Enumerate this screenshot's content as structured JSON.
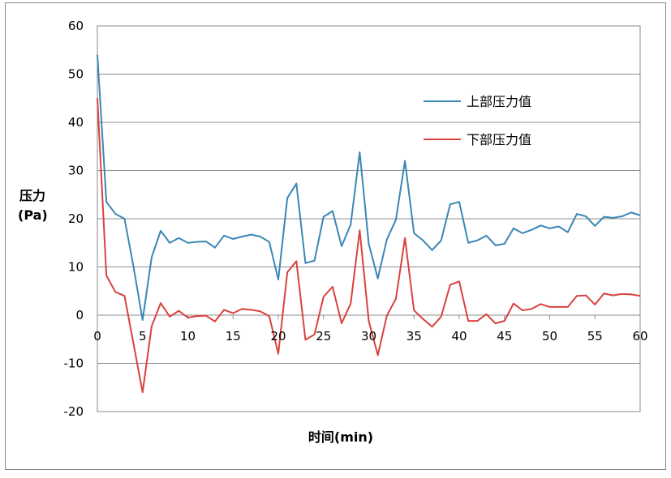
{
  "chart_data": {
    "type": "line",
    "xlabel": "时间(min)",
    "ylabel": "压力",
    "ylabel_unit": "(Pa)",
    "xlim": [
      0,
      60
    ],
    "ylim": [
      -20,
      60
    ],
    "x_ticks": [
      0,
      5,
      10,
      15,
      20,
      25,
      30,
      35,
      40,
      45,
      50,
      55,
      60
    ],
    "y_ticks": [
      -20,
      -10,
      0,
      10,
      20,
      30,
      40,
      50,
      60
    ],
    "grid": "horizontal",
    "legend_position": "right",
    "x": [
      0,
      1,
      2,
      3,
      4,
      5,
      6,
      7,
      8,
      9,
      10,
      11,
      12,
      13,
      14,
      15,
      16,
      17,
      18,
      19,
      20,
      21,
      22,
      23,
      24,
      25,
      26,
      27,
      28,
      29,
      30,
      31,
      32,
      33,
      34,
      35,
      36,
      37,
      38,
      39,
      40,
      41,
      42,
      43,
      44,
      45,
      46,
      47,
      48,
      49,
      50,
      51,
      52,
      53,
      54,
      55,
      56,
      57,
      58,
      59,
      60
    ],
    "series": [
      {
        "name": "上部压力值",
        "color": "#3a87b5",
        "values": [
          54,
          23.5,
          21,
          20,
          10,
          -1,
          12,
          17.5,
          15,
          16,
          15,
          15.2,
          15.3,
          14,
          16.5,
          15.8,
          16.3,
          16.7,
          16.3,
          15.2,
          7.4,
          24.3,
          27.3,
          10.8,
          11.3,
          20.4,
          21.6,
          14.3,
          18.8,
          33.8,
          14.8,
          7.6,
          15.7,
          19.8,
          32,
          17,
          15.5,
          13.5,
          15.5,
          23,
          23.5,
          15,
          15.5,
          16.5,
          14.5,
          14.8,
          18,
          17,
          17.7,
          18.6,
          18,
          18.4,
          17.2,
          21,
          20.5,
          18.5,
          20.4,
          20.2,
          20.5,
          21.3,
          20.7
        ]
      },
      {
        "name": "下部压力值",
        "color": "#d9423e",
        "values": [
          45,
          8.2,
          4.8,
          4,
          -6,
          -16,
          -2.3,
          2.5,
          -0.3,
          0.9,
          -0.5,
          -0.2,
          -0.1,
          -1.3,
          1.1,
          0.4,
          1.3,
          1.1,
          0.8,
          -0.2,
          -8,
          8.9,
          11.2,
          -5.1,
          -4,
          3.8,
          5.9,
          -1.7,
          2.4,
          17.6,
          -1.2,
          -8.3,
          -0.1,
          3.4,
          16,
          1,
          -0.8,
          -2.4,
          -0.3,
          6.3,
          7,
          -1.2,
          -1.2,
          0.2,
          -1.7,
          -1.2,
          2.4,
          1,
          1.3,
          2.3,
          1.7,
          1.7,
          1.7,
          4,
          4.1,
          2.2,
          4.5,
          4.1,
          4.4,
          4.3,
          4
        ]
      }
    ]
  }
}
